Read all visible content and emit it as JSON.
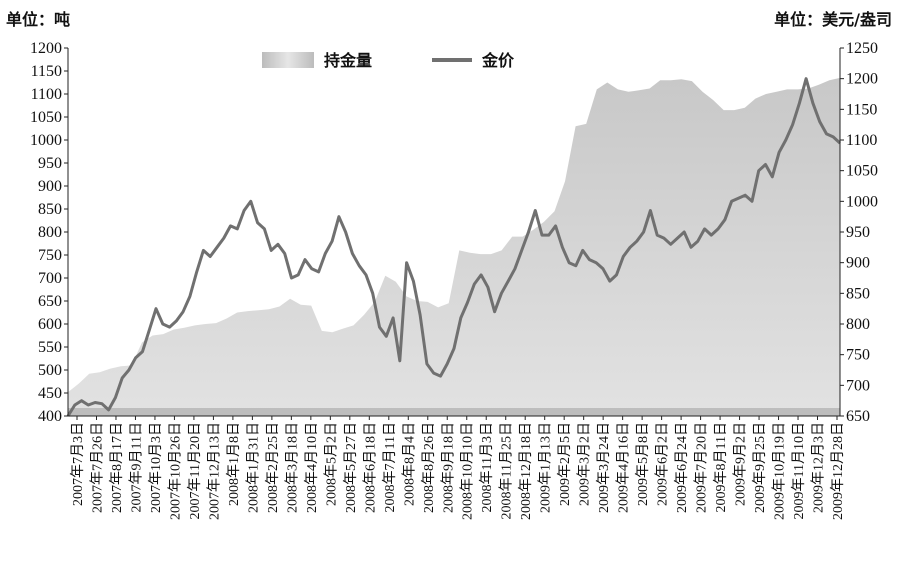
{
  "chart_data": {
    "type": "area",
    "left_unit_label": "单位：吨",
    "right_unit_label": "单位：美元/盎司",
    "legend_position": "top-center",
    "grid": false,
    "colors": {
      "holdings": "#c4c4c4",
      "price": "#707070"
    },
    "y_left": {
      "ylim": [
        400,
        1200
      ],
      "ticks": [
        400,
        450,
        500,
        550,
        600,
        650,
        700,
        750,
        800,
        850,
        900,
        950,
        1000,
        1050,
        1100,
        1150,
        1200
      ]
    },
    "y_right": {
      "ylim": [
        650,
        1250
      ],
      "ticks": [
        650,
        700,
        750,
        800,
        850,
        900,
        950,
        1000,
        1050,
        1100,
        1150,
        1200,
        1250
      ]
    },
    "x_tick_labels": [
      "2007年7月3日",
      "2007年7月26日",
      "2007年8月17日",
      "2007年9月11日",
      "2007年10月3日",
      "2007年10月26日",
      "2007年11月20日",
      "2007年12月13日",
      "2008年1月8日",
      "2008年1月31日",
      "2008年2月25日",
      "2008年3月18日",
      "2008年4月10日",
      "2008年5月2日",
      "2008年5月27日",
      "2008年6月18日",
      "2008年7月11日",
      "2008年8月4日",
      "2008年8月26日",
      "2008年9月18日",
      "2008年10月10日",
      "2008年11月3日",
      "2008年11月25日",
      "2008年12月18日",
      "2009年1月13日",
      "2009年2月5日",
      "2009年3月2日",
      "2009年3月24日",
      "2009年4月16日",
      "2009年5月8日",
      "2009年6月2日",
      "2009年6月24日",
      "2009年7月20日",
      "2009年8月11日",
      "2009年9月2日",
      "2009年9月25日",
      "2009年10月19日",
      "2009年11月10日",
      "2009年12月3日",
      "2009年12月28日"
    ],
    "series": [
      {
        "name": "持金量",
        "axis": "left",
        "kind": "area",
        "values": [
          452,
          470,
          492,
          495,
          503,
          508,
          510,
          560,
          575,
          578,
          588,
          592,
          597,
          600,
          602,
          612,
          625,
          628,
          630,
          632,
          638,
          655,
          642,
          640,
          585,
          582,
          590,
          597,
          620,
          648,
          705,
          692,
          660,
          650,
          648,
          636,
          645,
          760,
          755,
          752,
          752,
          760,
          790,
          790,
          805,
          822,
          845,
          910,
          1030,
          1035,
          1110,
          1125,
          1110,
          1105,
          1108,
          1112,
          1130,
          1130,
          1132,
          1128,
          1105,
          1087,
          1065,
          1065,
          1070,
          1090,
          1100,
          1105,
          1110,
          1110,
          1112,
          1120,
          1130,
          1135
        ]
      },
      {
        "name": "金价",
        "axis": "right",
        "kind": "line",
        "values": [
          650,
          668,
          675,
          668,
          672,
          670,
          660,
          680,
          712,
          725,
          745,
          755,
          790,
          825,
          800,
          795,
          805,
          820,
          845,
          885,
          920,
          910,
          925,
          940,
          960,
          955,
          985,
          1000,
          965,
          955,
          920,
          930,
          915,
          875,
          880,
          905,
          890,
          885,
          915,
          935,
          975,
          950,
          915,
          895,
          880,
          850,
          795,
          780,
          810,
          740,
          900,
          870,
          815,
          735,
          720,
          715,
          735,
          760,
          810,
          835,
          865,
          880,
          860,
          820,
          850,
          870,
          890,
          920,
          950,
          985,
          945,
          945,
          960,
          925,
          900,
          895,
          920,
          905,
          900,
          890,
          870,
          880,
          910,
          925,
          935,
          950,
          985,
          945,
          940,
          930,
          940,
          950,
          925,
          935,
          955,
          945,
          955,
          970,
          1000,
          1005,
          1010,
          1000,
          1050,
          1060,
          1040,
          1080,
          1100,
          1125,
          1160,
          1200,
          1160,
          1130,
          1110,
          1105,
          1095
        ]
      }
    ]
  }
}
